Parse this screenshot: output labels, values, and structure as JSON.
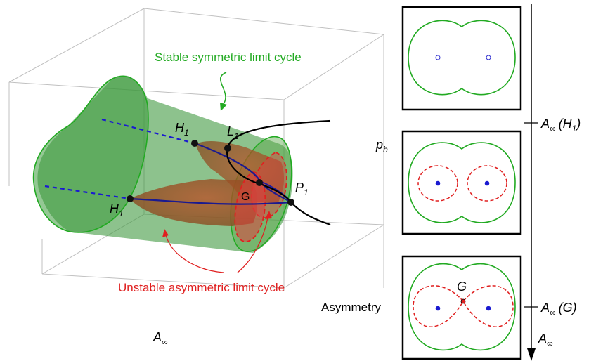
{
  "annotations": {
    "stable_symmetric": "Stable symmetric limit cycle",
    "unstable_asymmetric": "Unstable asymmetric limit cycle"
  },
  "axes": {
    "x": "A",
    "x_sub": "∞",
    "y": "Asymmetry",
    "z": "p",
    "z_sub": "b"
  },
  "points": {
    "h1_main": "H",
    "h1_sub": "1",
    "l1_main": "L",
    "l1_sub": "1",
    "p1_main": "P",
    "p1_sub": "1",
    "g": "G"
  },
  "side": {
    "axis_main": "A",
    "axis_sub": "∞",
    "tick1_main": "A",
    "tick1_sub": "∞",
    "tick1_arg": "(H",
    "tick1_arg_sub": "1",
    "tick1_close": ")",
    "tick2_main": "A",
    "tick2_sub": "∞",
    "tick2_arg": "(G)",
    "panel3_label": "G"
  },
  "colors": {
    "stable": "#22aa22",
    "unstable": "#e02020",
    "branch": "#1a1aa0",
    "equilibrium": "#1a1ad0",
    "cone_green": "#2f8f2f",
    "cone_brown": "#9c4a1c"
  }
}
